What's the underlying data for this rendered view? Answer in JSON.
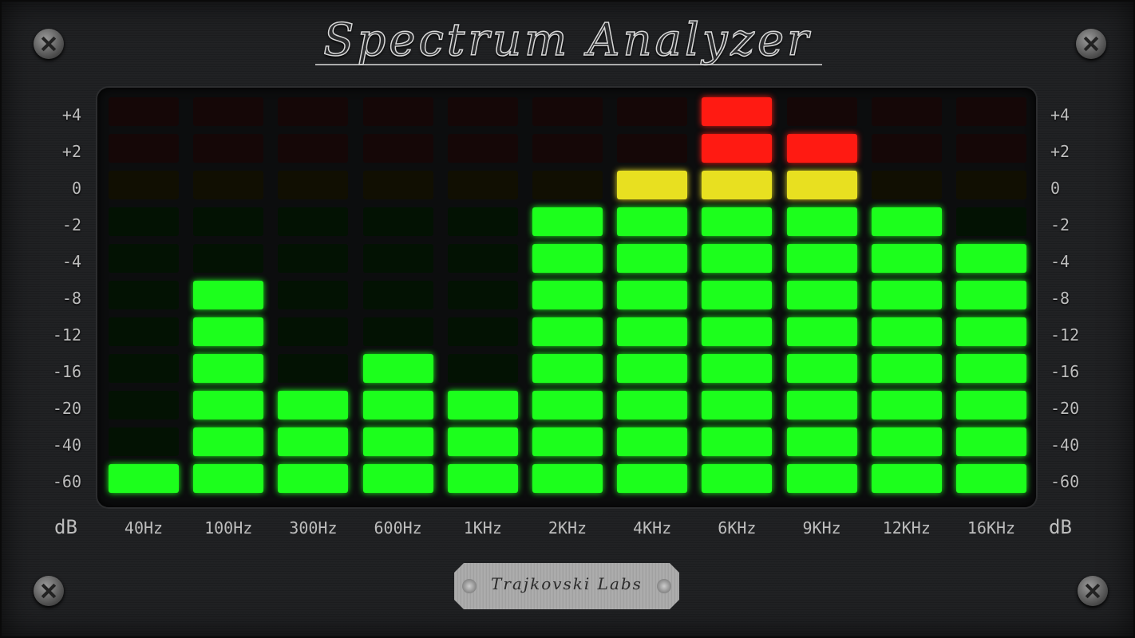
{
  "title": "Spectrum Analyzer",
  "brand": "Trajkovski Labs",
  "unit_left": "dB",
  "unit_right": "dB",
  "colors": {
    "green": "#1cff1c",
    "yellow": "#e8e020",
    "red": "#ff1a12",
    "green_off": "#031203",
    "yellow_off": "#110f02",
    "red_off": "#150707"
  },
  "chart_data": {
    "type": "bar",
    "title": "Spectrum Analyzer",
    "categories": [
      "40Hz",
      "100Hz",
      "300Hz",
      "600Hz",
      "1KHz",
      "2KHz",
      "4KHz",
      "6KHz",
      "9KHz",
      "12KHz",
      "16KHz"
    ],
    "levels": [
      "+4",
      "+2",
      "0",
      "-2",
      "-4",
      "-8",
      "-12",
      "-16",
      "-20",
      "-40",
      "-60"
    ],
    "values": [
      -60,
      -8,
      -20,
      -16,
      -20,
      -2,
      0,
      4,
      2,
      -2,
      -4
    ],
    "ylabel": "dB"
  }
}
